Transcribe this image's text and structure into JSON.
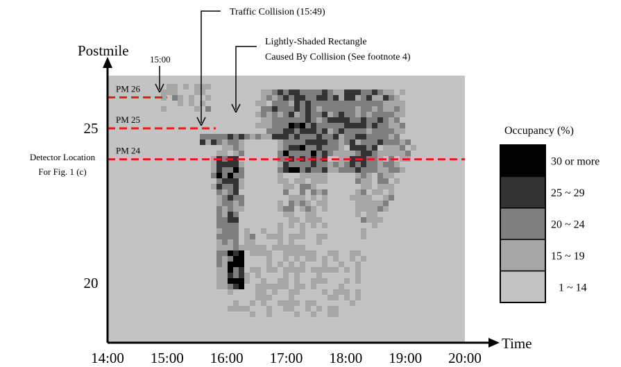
{
  "chart_data": {
    "type": "heatmap",
    "title": "",
    "xlabel": "Time",
    "ylabel": "Postmile",
    "x_range": [
      "14:00",
      "20:00"
    ],
    "x_ticks": [
      "14:00",
      "15:00",
      "16:00",
      "17:00",
      "18:00",
      "19:00",
      "20:00"
    ],
    "y_ticks": [
      {
        "label": "25",
        "value": 25
      },
      {
        "label": "20",
        "value": 20
      }
    ],
    "reference_lines": [
      {
        "label": "PM 26",
        "postmile": 26,
        "until": "15:00",
        "color": "#e8191b"
      },
      {
        "label": "PM 25",
        "postmile": 25,
        "until": "15:49",
        "color": "#e8191b"
      },
      {
        "label": "PM 24",
        "postmile": 24,
        "until": "20:00",
        "color": "#e8191b"
      }
    ],
    "annotations": [
      {
        "text": "15:00",
        "at": "15:00"
      },
      {
        "text": "Traffic Collision (15:49)",
        "at": "15:49"
      },
      {
        "lines": [
          "Lightly-Shaded Rectangle",
          "Caused By Collision (See footnote 4)"
        ],
        "at": "16:10"
      }
    ],
    "side_label": {
      "lines": [
        "Detector Location",
        "For Fig. 1 (c)"
      ]
    },
    "legend": {
      "title": "Occupancy (%)",
      "placement": "right",
      "items": [
        {
          "label": "30 or more",
          "color": "#000000"
        },
        {
          "label": "25 ~ 29",
          "color": "#333333"
        },
        {
          "label": "20 ~ 24",
          "color": "#7f7f7f"
        },
        {
          "label": "15 ~ 19",
          "color": "#a6a6a6"
        },
        {
          "label": "1 ~ 14",
          "color": "#c3c3c3"
        }
      ]
    },
    "colors": {
      "background": "#c3c3c3",
      "reference_line": "#e8191b"
    }
  }
}
